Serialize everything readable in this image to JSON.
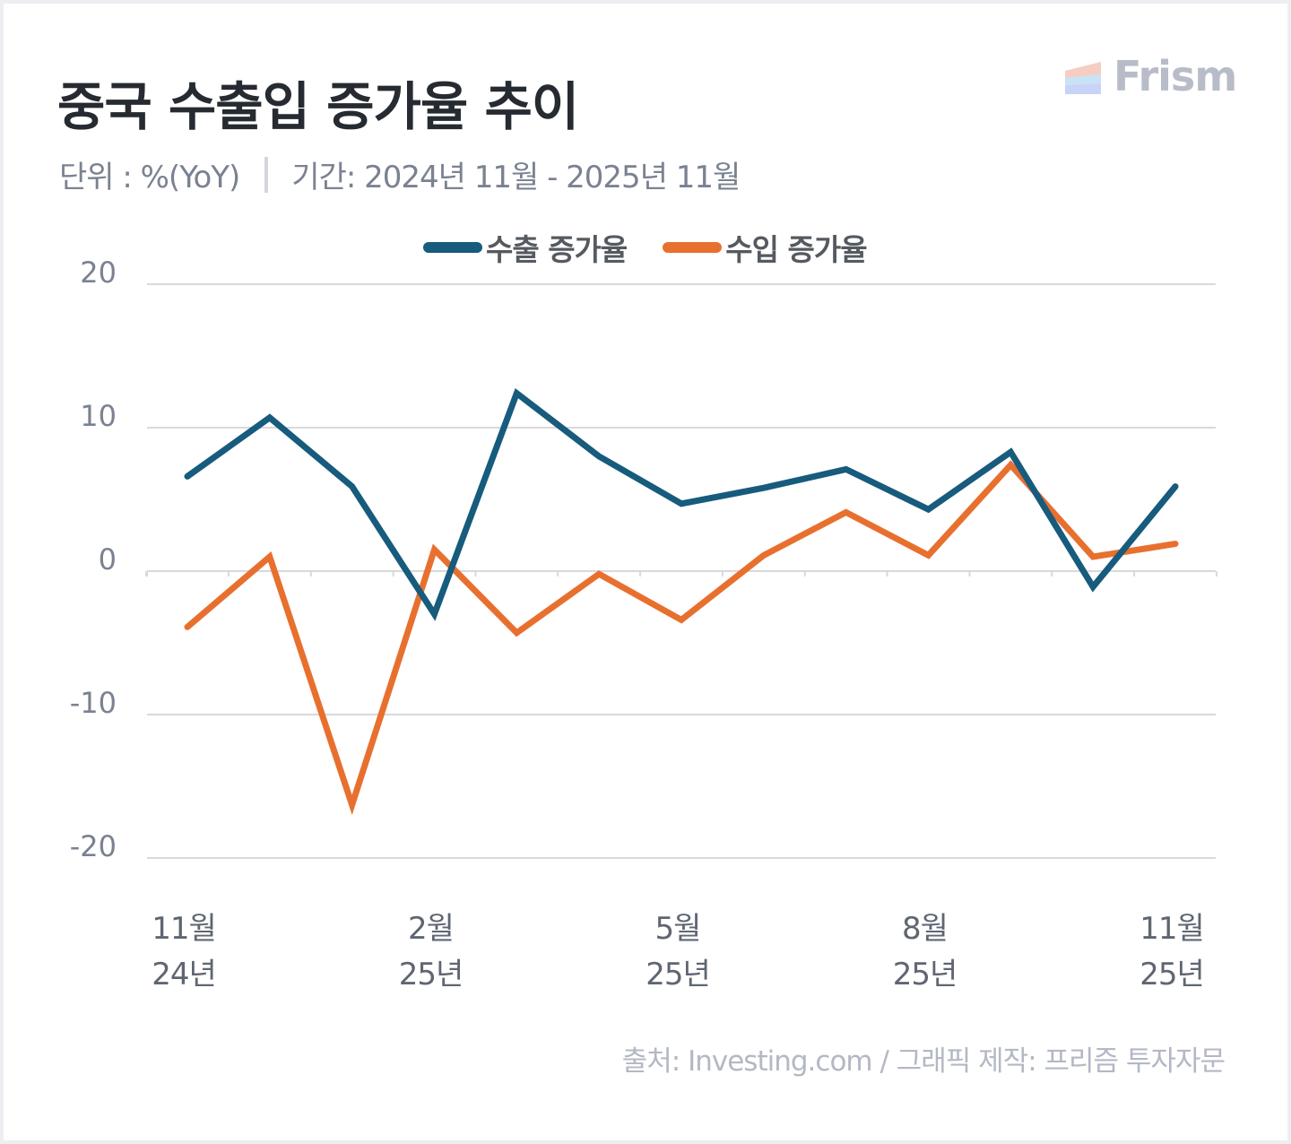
{
  "header": {
    "title": "중국 수출입 증가율 추이",
    "unit": "단위 : %(YoY)",
    "period": "기간: 2024년 11월 - 2025년 11월"
  },
  "logo": {
    "text": "Frism",
    "icon": "frism-logo-icon"
  },
  "footer": {
    "source": "출처: Investing.com / 그래픽 제작: 프리즘 투자자문"
  },
  "colors": {
    "export": "#175b7d",
    "import": "#e8702f",
    "grid": "#d9d9d9",
    "logo_stripes": [
      "#f5cdc2",
      "#c7e3f5",
      "#c9d3f7"
    ]
  },
  "chart_data": {
    "type": "line",
    "title": "중국 수출입 증가율 추이",
    "xlabel": "",
    "ylabel": "%(YoY)",
    "ylim": [
      -20,
      20
    ],
    "yticks": [
      "20",
      "10",
      "0",
      "-10",
      "-20"
    ],
    "ytick_values": [
      20,
      10,
      0,
      -10,
      -20
    ],
    "grid": true,
    "legend_position": "top-center",
    "x": [
      "2024-11",
      "2024-12",
      "2025-01",
      "2025-02",
      "2025-03",
      "2025-04",
      "2025-05",
      "2025-06",
      "2025-07",
      "2025-08",
      "2025-09",
      "2025-10",
      "2025-11"
    ],
    "xtick_labels": [
      {
        "index": 0,
        "month": "11월",
        "year": "24년"
      },
      {
        "index": 3,
        "month": "2월",
        "year": "25년"
      },
      {
        "index": 6,
        "month": "5월",
        "year": "25년"
      },
      {
        "index": 9,
        "month": "8월",
        "year": "25년"
      },
      {
        "index": 12,
        "month": "11월",
        "year": "25년"
      }
    ],
    "series": [
      {
        "name": "수출 증가율",
        "color": "#175b7d",
        "values": [
          6.6,
          10.7,
          5.9,
          -3.0,
          12.4,
          8.0,
          4.7,
          5.8,
          7.1,
          4.3,
          8.3,
          -1.1,
          5.9
        ]
      },
      {
        "name": "수입 증가율",
        "color": "#e8702f",
        "values": [
          -3.9,
          1.0,
          -16.3,
          1.5,
          -4.3,
          -0.2,
          -3.4,
          1.1,
          4.1,
          1.1,
          7.4,
          1.0,
          1.9
        ]
      }
    ]
  }
}
